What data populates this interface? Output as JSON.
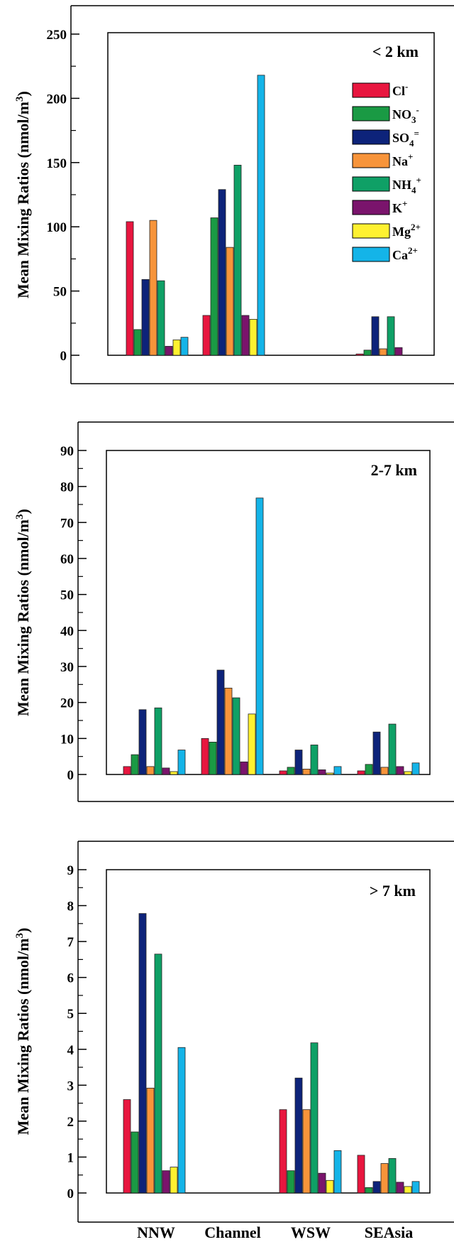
{
  "chart_data": [
    {
      "type": "bar",
      "title": "< 2 km",
      "ylabel": "Mean Mixing Ratios (nmol/m³)",
      "ylim": [
        0,
        250
      ],
      "yticks": [
        0,
        50,
        100,
        150,
        200,
        250
      ],
      "categories": [
        "NNW",
        "Channel",
        "WSW",
        "SEAsia"
      ],
      "series": [
        {
          "name": "Cl-",
          "values": [
            104,
            31,
            0,
            1
          ]
        },
        {
          "name": "NO3-",
          "values": [
            20,
            107,
            0,
            4
          ]
        },
        {
          "name": "SO4=",
          "values": [
            59,
            129,
            0,
            30
          ]
        },
        {
          "name": "Na+",
          "values": [
            105,
            84,
            0,
            5
          ]
        },
        {
          "name": "NH4+",
          "values": [
            58,
            148,
            0,
            30
          ]
        },
        {
          "name": "K+",
          "values": [
            7,
            31,
            0,
            6
          ]
        },
        {
          "name": "Mg2+",
          "values": [
            12,
            28,
            0,
            0
          ]
        },
        {
          "name": "Ca2+",
          "values": [
            14,
            218,
            0,
            0
          ]
        }
      ],
      "legend": "top-right",
      "grid": false
    },
    {
      "type": "bar",
      "title": "2-7 km",
      "ylabel": "Mean Mixing Ratios (nmol/m³)",
      "ylim": [
        0,
        90
      ],
      "yticks": [
        0,
        10,
        20,
        30,
        40,
        50,
        60,
        70,
        80,
        90
      ],
      "categories": [
        "NNW",
        "Channel",
        "WSW",
        "SEAsia"
      ],
      "series": [
        {
          "name": "Cl-",
          "values": [
            2.2,
            10,
            1,
            1
          ]
        },
        {
          "name": "NO3-",
          "values": [
            5.5,
            9,
            2,
            2.8
          ]
        },
        {
          "name": "SO4=",
          "values": [
            18,
            29,
            6.8,
            11.8
          ]
        },
        {
          "name": "Na+",
          "values": [
            2.2,
            24,
            1.5,
            2
          ]
        },
        {
          "name": "NH4+",
          "values": [
            18.5,
            21.3,
            8.2,
            14
          ]
        },
        {
          "name": "K+",
          "values": [
            1.8,
            3.5,
            1.3,
            2.2
          ]
        },
        {
          "name": "Mg2+",
          "values": [
            0.8,
            16.8,
            0.4,
            0.8
          ]
        },
        {
          "name": "Ca2+",
          "values": [
            6.8,
            76.8,
            2.2,
            3.2
          ]
        }
      ],
      "grid": false
    },
    {
      "type": "bar",
      "title": "> 7 km",
      "ylabel": "Mean Mixing Ratios (nmol/m³)",
      "ylim": [
        0,
        9
      ],
      "yticks": [
        0,
        1,
        2,
        3,
        4,
        5,
        6,
        7,
        8,
        9
      ],
      "categories": [
        "NNW",
        "Channel",
        "WSW",
        "SEAsia"
      ],
      "series": [
        {
          "name": "Cl-",
          "values": [
            2.6,
            0,
            2.32,
            1.05
          ]
        },
        {
          "name": "NO3-",
          "values": [
            1.7,
            0,
            0.62,
            0.15
          ]
        },
        {
          "name": "SO4=",
          "values": [
            7.78,
            0,
            3.2,
            0.32
          ]
        },
        {
          "name": "Na+",
          "values": [
            2.92,
            0,
            2.32,
            0.82
          ]
        },
        {
          "name": "NH4+",
          "values": [
            6.65,
            0,
            4.18,
            0.96
          ]
        },
        {
          "name": "K+",
          "values": [
            0.62,
            0,
            0.55,
            0.3
          ]
        },
        {
          "name": "Mg2+",
          "values": [
            0.72,
            0,
            0.35,
            0.18
          ]
        },
        {
          "name": "Ca2+",
          "values": [
            4.05,
            0,
            1.18,
            0.32
          ]
        }
      ],
      "grid": false
    }
  ],
  "legend": {
    "items": [
      {
        "base": "Cl",
        "sub": "",
        "sup": "-",
        "color": "#e8163f"
      },
      {
        "base": "NO",
        "sub": "3",
        "sup": "-",
        "color": "#1a9a44"
      },
      {
        "base": "SO",
        "sub": "4",
        "sup": "=",
        "color": "#0d237a"
      },
      {
        "base": "Na",
        "sub": "",
        "sup": "+",
        "color": "#f7943a"
      },
      {
        "base": "NH",
        "sub": "4",
        "sup": "+",
        "color": "#0fa066"
      },
      {
        "base": "K",
        "sub": "",
        "sup": "+",
        "color": "#7a146c"
      },
      {
        "base": "Mg",
        "sub": "",
        "sup": "2+",
        "color": "#fff130"
      },
      {
        "base": "Ca",
        "sub": "",
        "sup": "2+",
        "color": "#14b4e8"
      }
    ]
  },
  "ylabel_parts": {
    "main": "Mean Mixing Ratios (nmol/m",
    "sup": "3",
    "end": ")"
  }
}
